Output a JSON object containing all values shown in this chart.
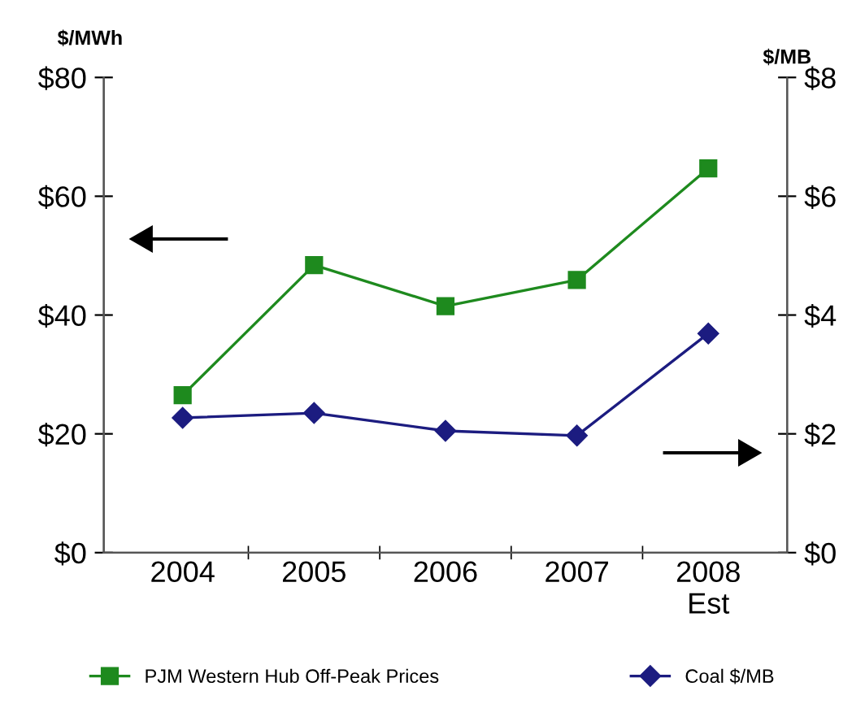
{
  "chart_data": {
    "type": "line",
    "categories": [
      "2004",
      "2005",
      "2006",
      "2007",
      "2008\nEst"
    ],
    "ylabel": "$/MWh",
    "y2label": "$/MB",
    "series": [
      {
        "name": "PJM Western Hub Off-Peak Prices",
        "color": "#1e8a1e",
        "marker": "square",
        "values": [
          26.5,
          48.4,
          41.5,
          45.9,
          64.7
        ]
      },
      {
        "name": "Coal $/MB",
        "color": "#1c1c80",
        "marker": "diamond",
        "axis": "y2",
        "values": [
          2.27,
          2.35,
          2.05,
          1.97,
          3.69
        ]
      }
    ],
    "ylim": [
      0,
      80
    ],
    "yticks": [
      {
        "value": 0,
        "label": "$0"
      },
      {
        "value": 20,
        "label": "$20"
      },
      {
        "value": 40,
        "label": "$40"
      },
      {
        "value": 60,
        "label": "$60"
      },
      {
        "value": 80,
        "label": "$80"
      }
    ],
    "y2lim": [
      0,
      8
    ],
    "y2ticks": [
      {
        "value": 0,
        "label": "$0"
      },
      {
        "value": 2,
        "label": "$2"
      },
      {
        "value": 4,
        "label": "$4"
      },
      {
        "value": 6,
        "label": "$6"
      },
      {
        "value": 8,
        "label": "$8"
      }
    ],
    "grid": false,
    "legend": "bottom",
    "line_style": "solid"
  }
}
